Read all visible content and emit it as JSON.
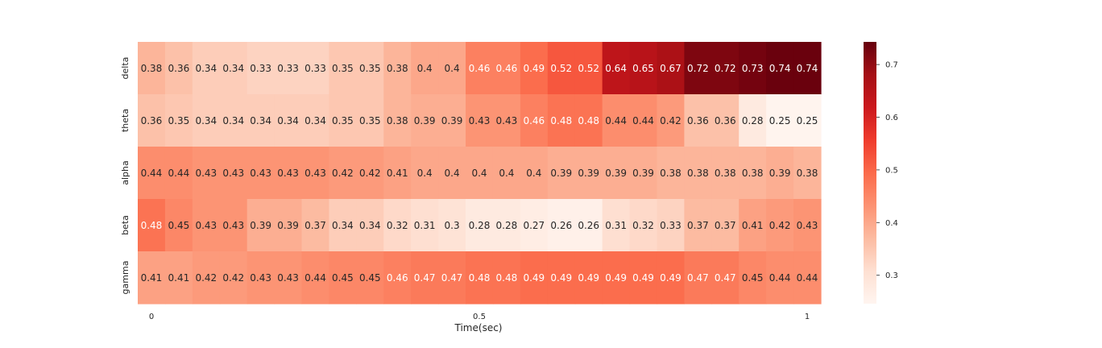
{
  "chart_data": {
    "type": "heatmap",
    "xlabel": "Time(sec)",
    "ylabel": "",
    "row_labels": [
      "delta",
      "theta",
      "alpha",
      "beta",
      "gamma"
    ],
    "x_ticks": [
      {
        "value": 0,
        "label": "0"
      },
      {
        "value": 0.5,
        "label": "0.5"
      },
      {
        "value": 1,
        "label": "1"
      }
    ],
    "x_range": [
      0,
      1
    ],
    "columns": 25,
    "values": [
      [
        0.38,
        0.36,
        0.34,
        0.34,
        0.33,
        0.33,
        0.33,
        0.35,
        0.35,
        0.38,
        0.4,
        0.4,
        0.46,
        0.46,
        0.49,
        0.52,
        0.52,
        0.64,
        0.65,
        0.67,
        0.72,
        0.72,
        0.73,
        0.74,
        0.74
      ],
      [
        0.36,
        0.35,
        0.34,
        0.34,
        0.34,
        0.34,
        0.34,
        0.35,
        0.35,
        0.38,
        0.39,
        0.39,
        0.43,
        0.43,
        0.46,
        0.48,
        0.48,
        0.44,
        0.44,
        0.42,
        0.36,
        0.36,
        0.28,
        0.25,
        0.25
      ],
      [
        0.44,
        0.44,
        0.43,
        0.43,
        0.43,
        0.43,
        0.43,
        0.42,
        0.42,
        0.41,
        0.4,
        0.4,
        0.4,
        0.4,
        0.4,
        0.39,
        0.39,
        0.39,
        0.39,
        0.38,
        0.38,
        0.38,
        0.38,
        0.39,
        0.38
      ],
      [
        0.48,
        0.45,
        0.43,
        0.43,
        0.39,
        0.39,
        0.37,
        0.34,
        0.34,
        0.32,
        0.31,
        0.3,
        0.28,
        0.28,
        0.27,
        0.26,
        0.26,
        0.31,
        0.32,
        0.33,
        0.37,
        0.37,
        0.41,
        0.42,
        0.43
      ],
      [
        0.41,
        0.41,
        0.42,
        0.42,
        0.43,
        0.43,
        0.44,
        0.45,
        0.45,
        0.46,
        0.47,
        0.47,
        0.48,
        0.48,
        0.49,
        0.49,
        0.49,
        0.49,
        0.49,
        0.49,
        0.47,
        0.47,
        0.45,
        0.44,
        0.44
      ]
    ],
    "colorbar": {
      "colormap": "Reds",
      "vmin": 0.246,
      "vmax": 0.743,
      "ticks": [
        {
          "value": 0.3,
          "label": "0.3"
        },
        {
          "value": 0.4,
          "label": "0.4"
        },
        {
          "value": 0.5,
          "label": "0.5"
        },
        {
          "value": 0.6,
          "label": "0.6"
        },
        {
          "value": 0.7,
          "label": "0.7"
        }
      ]
    },
    "annotations": "cell values shown in each cell",
    "grid": false
  }
}
